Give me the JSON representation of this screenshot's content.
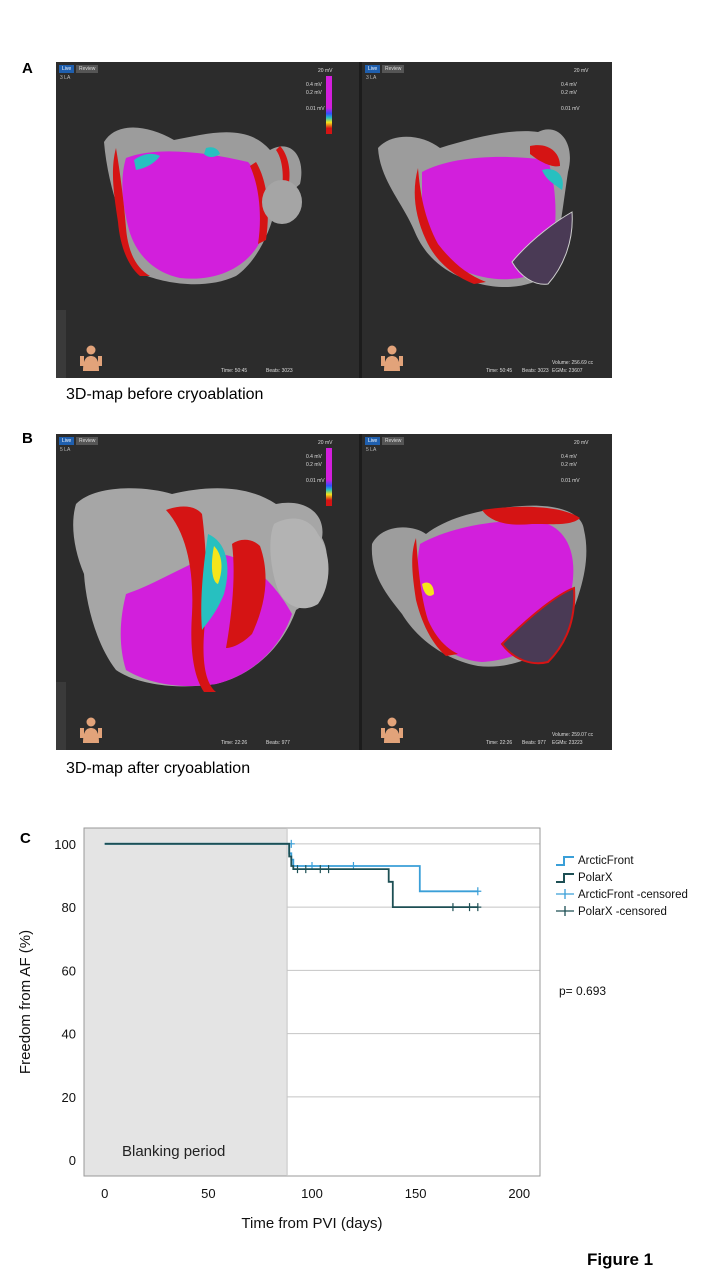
{
  "panels": {
    "a": {
      "letter": "A",
      "caption": "3D-map before cryoablation",
      "live_label": "Live",
      "review_label": "Review",
      "chamber_label": "3 LA",
      "scale_top": "20 mV",
      "scale_mid1": "0.4 mV",
      "scale_mid2": "0.2 mV",
      "scale_bottom": "0.01 mV",
      "time": "Time: 50:45",
      "beats": "Beats: 3023",
      "volume": "Volume: 256.69 cc",
      "egms": "EGMs: 23607"
    },
    "b": {
      "letter": "B",
      "caption": "3D-map after cryoablation",
      "live_label": "Live",
      "review_label": "Review",
      "chamber_label": "5 LA",
      "scale_top": "20 mV",
      "scale_mid1": "0.4 mV",
      "scale_mid2": "0.2 mV",
      "scale_bottom": "0.01 mV",
      "time": "Time: 22:26",
      "beats": "Beats: 977",
      "volume": "Volume: 259.07 cc",
      "egms": "EGMs: 23223"
    },
    "c": {
      "letter": "C"
    }
  },
  "chart_data": {
    "type": "line",
    "title": "",
    "xlabel": "Time from PVI (days)",
    "ylabel": "Freedom from AF (%)",
    "xlim": [
      -10,
      210
    ],
    "ylim": [
      -5,
      105
    ],
    "xticks": [
      0,
      50,
      100,
      150,
      200
    ],
    "yticks": [
      0,
      20,
      40,
      60,
      80,
      100
    ],
    "grid": "horizontal",
    "shaded_region": {
      "x": [
        -10,
        88
      ],
      "label": "Blanking period"
    },
    "series": [
      {
        "name": "ArcticFront",
        "color": "#3a9fd8",
        "step_points": [
          [
            0,
            100
          ],
          [
            89,
            100
          ],
          [
            89,
            97
          ],
          [
            90,
            97
          ],
          [
            90,
            95
          ],
          [
            91,
            95
          ],
          [
            91,
            93
          ],
          [
            152,
            93
          ],
          [
            152,
            85
          ],
          [
            180,
            85
          ]
        ],
        "censored": [
          [
            90,
            100
          ],
          [
            100,
            93
          ],
          [
            120,
            93
          ],
          [
            180,
            85
          ]
        ]
      },
      {
        "name": "PolarX",
        "color": "#1d4f54",
        "step_points": [
          [
            0,
            100
          ],
          [
            89,
            100
          ],
          [
            89,
            96
          ],
          [
            90,
            96
          ],
          [
            90,
            93
          ],
          [
            91,
            93
          ],
          [
            91,
            92
          ],
          [
            137,
            92
          ],
          [
            137,
            88
          ],
          [
            139,
            88
          ],
          [
            139,
            80
          ],
          [
            180,
            80
          ]
        ],
        "censored": [
          [
            93,
            92
          ],
          [
            97,
            92
          ],
          [
            104,
            92
          ],
          [
            108,
            92
          ],
          [
            168,
            80
          ],
          [
            176,
            80
          ],
          [
            180,
            80
          ]
        ]
      }
    ],
    "legend": {
      "position": "right",
      "entries": [
        "ArcticFront",
        "PolarX",
        "ArcticFront -censored",
        "PolarX -censored"
      ]
    },
    "annotation": "p= 0.693"
  },
  "figure_label": "Figure 1",
  "colors": {
    "magenta": "#d21fdc",
    "red": "#d51414",
    "grey": "#a7a7a7",
    "background": "#2c2c2c"
  }
}
